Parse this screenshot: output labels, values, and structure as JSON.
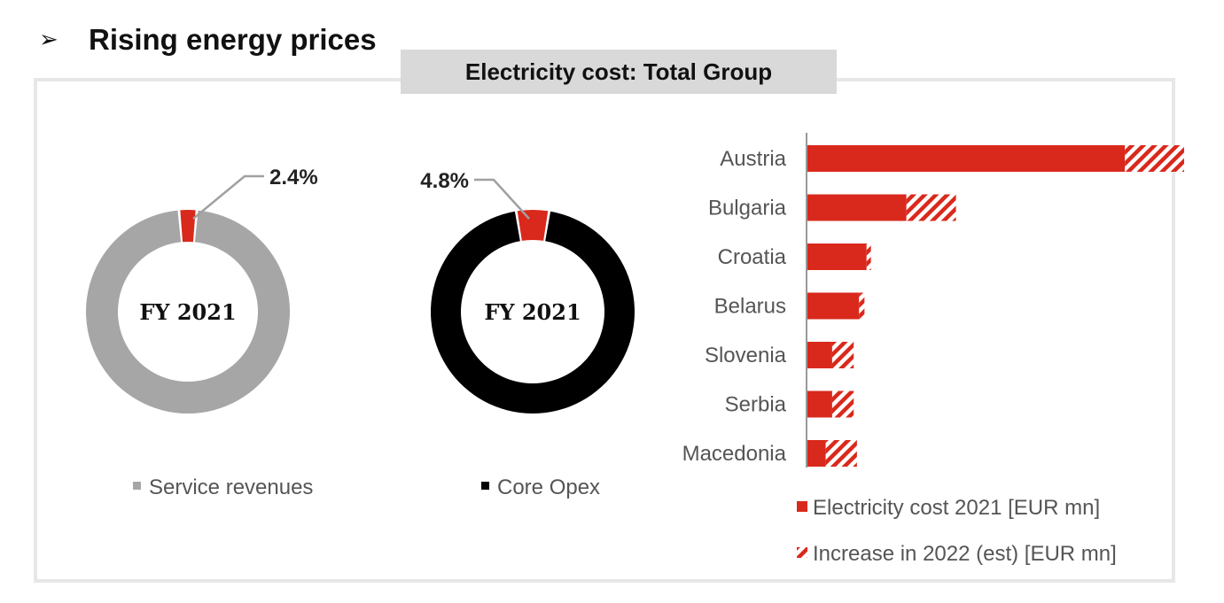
{
  "slide": {
    "bullet_glyph": "➢",
    "title": "Rising energy prices",
    "banner": "Electricity cost: Total Group"
  },
  "colors": {
    "red": "#d9291c",
    "gray": "#a6a6a6",
    "black": "#000000",
    "leader": "#a0a0a0"
  },
  "chart_data": [
    {
      "type": "pie",
      "variant": "donut",
      "center_label": "FY 2021",
      "series_name": "Service revenues",
      "slices": [
        {
          "label": "2.4%",
          "value": 2.4,
          "color": "#d9291c"
        },
        {
          "label": "",
          "value": 97.6,
          "color": "#a6a6a6"
        }
      ],
      "legend": [
        {
          "label": "Service revenues",
          "color": "#a6a6a6"
        }
      ]
    },
    {
      "type": "pie",
      "variant": "donut",
      "center_label": "FY 2021",
      "series_name": "Core Opex",
      "slices": [
        {
          "label": "4.8%",
          "value": 4.8,
          "color": "#d9291c"
        },
        {
          "label": "",
          "value": 95.2,
          "color": "#000000"
        }
      ],
      "legend": [
        {
          "label": "Core Opex",
          "color": "#000000"
        }
      ]
    },
    {
      "type": "bar",
      "orientation": "horizontal",
      "stacked": true,
      "categories": [
        "Austria",
        "Bulgaria",
        "Croatia",
        "Belarus",
        "Slovenia",
        "Serbia",
        "Macedonia"
      ],
      "series": [
        {
          "name": "Electricity cost 2021 [EUR mn]",
          "values": [
            29.5,
            9.2,
            5.5,
            4.8,
            2.3,
            2.3,
            1.7
          ],
          "pattern": "solid",
          "color": "#d9291c"
        },
        {
          "name": "Increase in 2022 (est) [EUR mn]",
          "values": [
            5.5,
            4.6,
            0.4,
            0.5,
            2.0,
            2.0,
            2.9
          ],
          "pattern": "hatched",
          "color": "#d9291c"
        }
      ],
      "xlim": [
        0,
        35
      ],
      "legend_position": "bottom"
    }
  ]
}
